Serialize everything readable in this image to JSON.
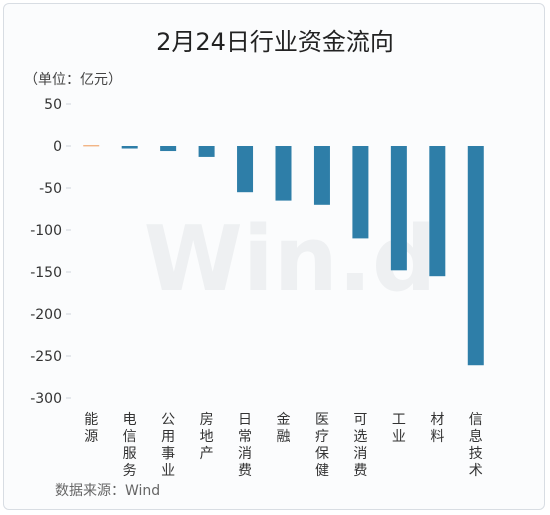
{
  "chart_data": {
    "type": "bar",
    "title": "2月24日行业资金流向",
    "unit_label": "（单位：亿元）",
    "categories": [
      "能源",
      "电信服务",
      "公用事业",
      "房地产",
      "日常消费",
      "金融",
      "医疗保健",
      "可选消费",
      "工业",
      "材料",
      "信息技术"
    ],
    "values": [
      1,
      -3,
      -6,
      -13,
      -55,
      -65,
      -70,
      -110,
      -148,
      -155,
      -261
    ],
    "ylim": [
      -300,
      50
    ],
    "yticks": [
      50,
      0,
      -50,
      -100,
      -150,
      -200,
      -250,
      -300
    ],
    "grid": false,
    "colors": {
      "positive": "#f0a870",
      "negative": "#2e7ea8"
    },
    "source": "数据来源：Wind",
    "watermark": "Win.d"
  }
}
